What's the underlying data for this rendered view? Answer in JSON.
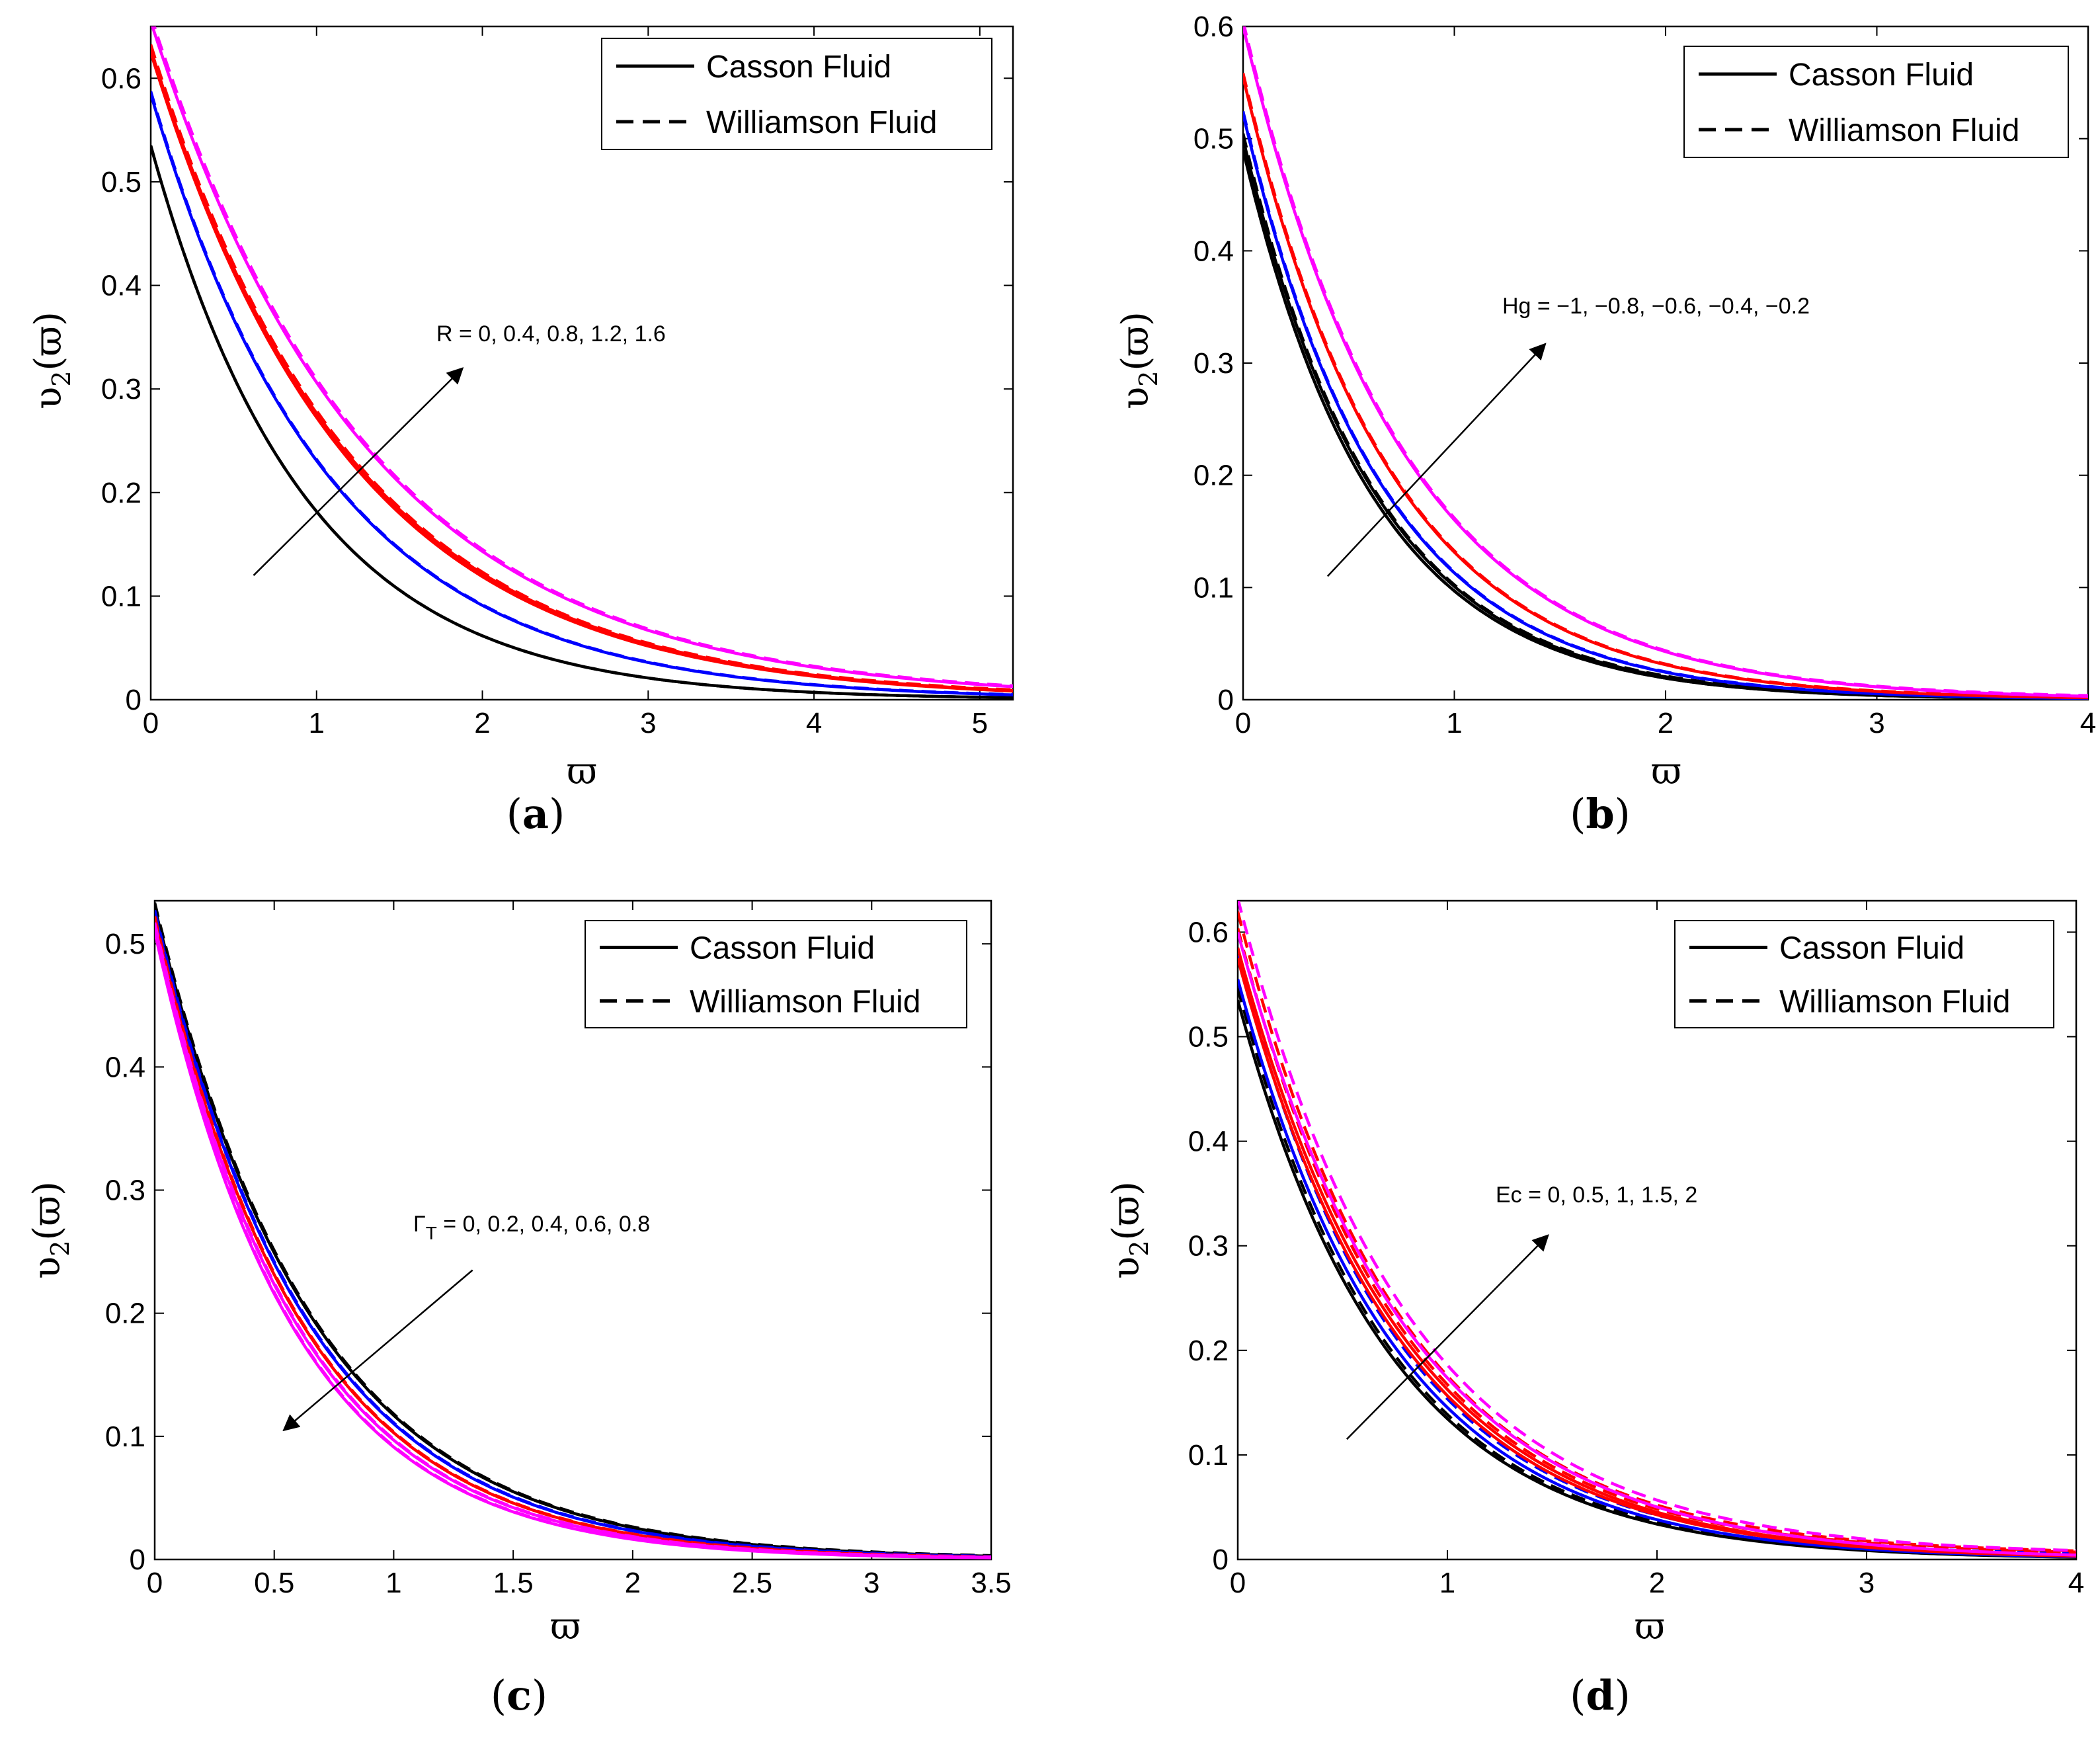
{
  "figure": {
    "panels": [
      "a",
      "b",
      "c",
      "d"
    ]
  },
  "chart_data": [
    {
      "panel": "a",
      "type": "line",
      "caption_letter": "a",
      "xlabel": "ϖ",
      "ylabel_main": "υ",
      "ylabel_sub": "2",
      "ylabel_arg": "(ϖ)",
      "xlim": [
        0,
        5.2
      ],
      "ylim": [
        0,
        0.65
      ],
      "xticks": [
        0,
        1,
        2,
        3,
        4,
        5
      ],
      "yticks": [
        0,
        0.1,
        0.2,
        0.3,
        0.4,
        0.5,
        0.6
      ],
      "ytick_labels": [
        "0",
        "0.1",
        "0.2",
        "0.3",
        "0.4",
        "0.5",
        "0.6"
      ],
      "legend": {
        "solid": "Casson Fluid",
        "dashed": "Williamson Fluid",
        "placement": "top-right"
      },
      "annotation": "R = 0, 0.4, 0.8, 1.2, 1.6",
      "annotation_sub": "",
      "annotation_rest": "",
      "arrow": {
        "direction": "increasing",
        "from": [
          0.62,
          0.12
        ],
        "to": [
          1.88,
          0.32
        ]
      },
      "series": [
        {
          "name": "R = 0",
          "color": "#000000",
          "y0": 0.535,
          "decay": 1.08,
          "dashed_offset": 0.0
        },
        {
          "name": "R = 0.4",
          "color": "#0000ff",
          "y0": 0.585,
          "decay": 0.93,
          "dashed_offset": 0.002
        },
        {
          "name": "R = 0.8",
          "color": "#ff0000",
          "y0": 0.625,
          "decay": 0.83,
          "dashed_offset": 0.003
        },
        {
          "name": "R = 1.2",
          "color": "#ff0000",
          "y0": 0.628,
          "decay": 0.82,
          "dashed_offset": 0.004
        },
        {
          "name": "R = 1.6",
          "color": "#ff00ff",
          "y0": 0.655,
          "decay": 0.76,
          "dashed_offset": 0.005
        }
      ]
    },
    {
      "panel": "b",
      "type": "line",
      "caption_letter": "b",
      "xlabel": "ϖ",
      "ylabel_main": "υ",
      "ylabel_sub": "2",
      "ylabel_arg": "(ϖ)",
      "xlim": [
        0,
        4
      ],
      "ylim": [
        0,
        0.6
      ],
      "xticks": [
        0,
        1,
        2,
        3,
        4
      ],
      "yticks": [
        0,
        0.1,
        0.2,
        0.3,
        0.4,
        0.5,
        0.6
      ],
      "ytick_labels": [
        "0",
        "0.1",
        "0.2",
        "0.3",
        "0.4",
        "0.5",
        "0.6"
      ],
      "legend": {
        "solid": "Casson Fluid",
        "dashed": "Williamson Fluid",
        "placement": "top-right"
      },
      "annotation": "Hg = −1, −0.8, −0.6, −0.4, −0.2",
      "annotation_sub": "",
      "annotation_rest": "",
      "arrow": {
        "direction": "increasing",
        "from": [
          0.4,
          0.11
        ],
        "to": [
          1.43,
          0.317
        ]
      },
      "series": [
        {
          "name": "Hg = -1",
          "color": "#000000",
          "y0": 0.49,
          "decay": 1.62,
          "dashed_offset": 0.0
        },
        {
          "name": "Hg = -0.8",
          "color": "#000000",
          "y0": 0.5,
          "decay": 1.6,
          "dashed_offset": 0.004
        },
        {
          "name": "Hg = -0.6",
          "color": "#0000ff",
          "y0": 0.522,
          "decay": 1.53,
          "dashed_offset": 0.002
        },
        {
          "name": "Hg = -0.4",
          "color": "#ff0000",
          "y0": 0.555,
          "decay": 1.44,
          "dashed_offset": 0.003
        },
        {
          "name": "Hg = -0.2",
          "color": "#ff00ff",
          "y0": 0.6,
          "decay": 1.32,
          "dashed_offset": 0.004
        }
      ]
    },
    {
      "panel": "c",
      "type": "line",
      "caption_letter": "c",
      "xlabel": "ϖ",
      "ylabel_main": "υ",
      "ylabel_sub": "2",
      "ylabel_arg": "(ϖ)",
      "xlim": [
        0,
        3.5
      ],
      "ylim": [
        0,
        0.535
      ],
      "xticks": [
        0,
        0.5,
        1,
        1.5,
        2,
        2.5,
        3,
        3.5
      ],
      "yticks": [
        0,
        0.1,
        0.2,
        0.3,
        0.4,
        0.5
      ],
      "ytick_labels": [
        "0",
        "0.1",
        "0.2",
        "0.3",
        "0.4",
        "0.5"
      ],
      "legend": {
        "solid": "Casson Fluid",
        "dashed": "Williamson Fluid",
        "placement": "top-right"
      },
      "annotation": "Γ",
      "annotation_sub": "T",
      "annotation_rest": " = 0, 0.2, 0.4, 0.6, 0.8",
      "arrow": {
        "direction": "decreasing",
        "from": [
          1.33,
          0.235
        ],
        "to": [
          0.54,
          0.105
        ]
      },
      "series": [
        {
          "name": "ΓT = 0",
          "color": "#000000",
          "y0": 0.53,
          "decay": 1.51,
          "dashed_offset": 0.003
        },
        {
          "name": "ΓT = 0.2",
          "color": "#0000ff",
          "y0": 0.525,
          "decay": 1.56,
          "dashed_offset": 0.002
        },
        {
          "name": "ΓT = 0.4",
          "color": "#ff0000",
          "y0": 0.52,
          "decay": 1.62,
          "dashed_offset": 0.002
        },
        {
          "name": "ΓT = 0.6",
          "color": "#ff00ff",
          "y0": 0.515,
          "decay": 1.67,
          "dashed_offset": 0.002
        },
        {
          "name": "ΓT = 0.8",
          "color": "#ff00ff",
          "y0": 0.51,
          "decay": 1.72,
          "dashed_offset": 0.002
        }
      ]
    },
    {
      "panel": "d",
      "type": "line",
      "caption_letter": "d",
      "xlabel": "ϖ",
      "ylabel_main": "υ",
      "ylabel_sub": "2",
      "ylabel_arg": "(ϖ)",
      "xlim": [
        0,
        4
      ],
      "ylim": [
        0,
        0.63
      ],
      "xticks": [
        0,
        1,
        2,
        3,
        4
      ],
      "yticks": [
        0,
        0.1,
        0.2,
        0.3,
        0.4,
        0.5,
        0.6
      ],
      "ytick_labels": [
        "0",
        "0.1",
        "0.2",
        "0.3",
        "0.4",
        "0.5",
        "0.6"
      ],
      "legend": {
        "solid": "Casson Fluid",
        "dashed": "Williamson Fluid",
        "placement": "top-right"
      },
      "annotation": "Ec = 0, 0.5, 1, 1.5, 2",
      "annotation_sub": "",
      "annotation_rest": "",
      "arrow": {
        "direction": "increasing",
        "from": [
          0.52,
          0.115
        ],
        "to": [
          1.48,
          0.31
        ]
      },
      "series": [
        {
          "name": "Ec = 0",
          "color": "#000000",
          "y0": 0.535,
          "decay": 1.38,
          "dashed_offset": 0.01
        },
        {
          "name": "Ec = 0.5",
          "color": "#0000ff",
          "y0": 0.555,
          "decay": 1.34,
          "dashed_offset": 0.02
        },
        {
          "name": "Ec = 1",
          "color": "#ff0000",
          "y0": 0.575,
          "decay": 1.3,
          "dashed_offset": 0.025
        },
        {
          "name": "Ec = 1.5",
          "color": "#ff0000",
          "y0": 0.585,
          "decay": 1.28,
          "dashed_offset": 0.03
        },
        {
          "name": "Ec = 2",
          "color": "#ff00ff",
          "y0": 0.6,
          "decay": 1.24,
          "dashed_offset": 0.028
        }
      ]
    }
  ]
}
